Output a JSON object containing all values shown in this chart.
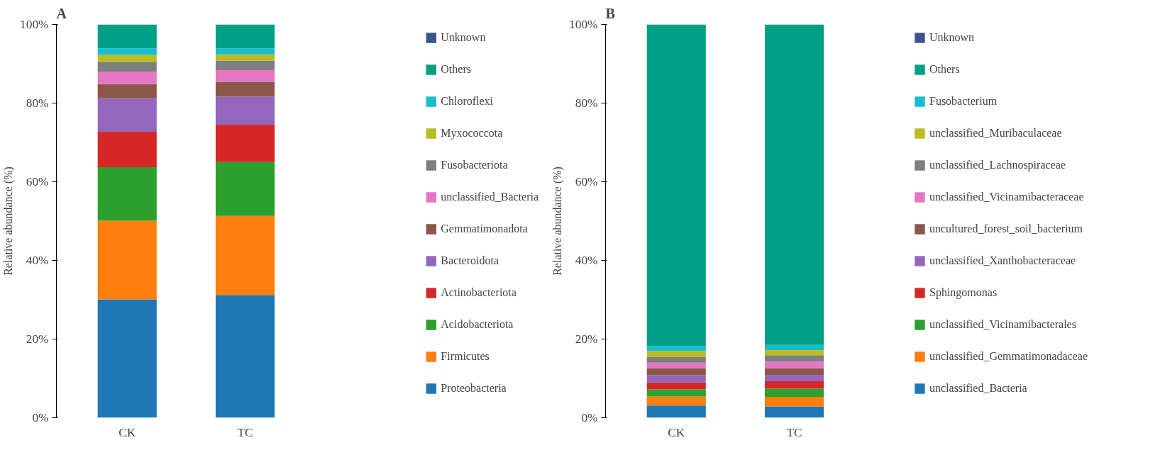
{
  "chart_data": [
    {
      "type": "bar",
      "title": "A",
      "ylabel": "Relative abundance (%)",
      "categories": [
        "CK",
        "TC"
      ],
      "stacked": true,
      "legend": "right",
      "grid": false,
      "ylim": [
        0,
        100
      ],
      "yticks": [
        {
          "value": 0,
          "label": "0%"
        },
        {
          "value": 20,
          "label": "20%"
        },
        {
          "value": 40,
          "label": "40%"
        },
        {
          "value": 60,
          "label": "60%"
        },
        {
          "value": 80,
          "label": "80%"
        },
        {
          "value": 100,
          "label": "100%"
        }
      ],
      "series": [
        {
          "name": "Proteobacteria",
          "color": "#1f77b4",
          "values": [
            30.1,
            31.2
          ]
        },
        {
          "name": "Firmicutes",
          "color": "#ff7f0e",
          "values": [
            20.0,
            20.1
          ]
        },
        {
          "name": "Acidobacteriota",
          "color": "#2ca02c",
          "values": [
            13.6,
            13.7
          ]
        },
        {
          "name": "Actinobacteriota",
          "color": "#d62728",
          "values": [
            9.0,
            9.5
          ]
        },
        {
          "name": "Bacteroidota",
          "color": "#9467bd",
          "values": [
            8.5,
            7.1
          ]
        },
        {
          "name": "Gemmatimonadota",
          "color": "#8c564b",
          "values": [
            3.6,
            3.8
          ]
        },
        {
          "name": "unclassified_Bacteria",
          "color": "#e377c2",
          "values": [
            3.2,
            3.0
          ]
        },
        {
          "name": "Fusobacteriota",
          "color": "#7f7f7f",
          "values": [
            2.5,
            2.4
          ]
        },
        {
          "name": "Myxococcota",
          "color": "#bcbd22",
          "values": [
            1.8,
            1.6
          ]
        },
        {
          "name": "Chloroflexi",
          "color": "#17becf",
          "values": [
            1.6,
            1.5
          ]
        },
        {
          "name": "Others",
          "color": "#00a087",
          "values": [
            6.1,
            6.1
          ]
        },
        {
          "name": "Unknown",
          "color": "#3c5488",
          "values": [
            0,
            0
          ]
        }
      ]
    },
    {
      "type": "bar",
      "title": "B",
      "ylabel": "Relative abundance (%)",
      "categories": [
        "CK",
        "TC"
      ],
      "stacked": true,
      "legend": "right",
      "grid": false,
      "ylim": [
        0,
        100
      ],
      "yticks": [
        {
          "value": 0,
          "label": "0%"
        },
        {
          "value": 20,
          "label": "20%"
        },
        {
          "value": 40,
          "label": "40%"
        },
        {
          "value": 60,
          "label": "60%"
        },
        {
          "value": 80,
          "label": "80%"
        },
        {
          "value": 100,
          "label": "100%"
        }
      ],
      "series": [
        {
          "name": "unclassified_Bacteria",
          "color": "#1f77b4",
          "values": [
            3.1,
            2.9
          ]
        },
        {
          "name": "unclassified_Gemmatimonadaceae",
          "color": "#ff7f0e",
          "values": [
            2.3,
            2.4
          ]
        },
        {
          "name": "unclassified_Vicinamibacterales",
          "color": "#2ca02c",
          "values": [
            1.8,
            2.1
          ]
        },
        {
          "name": "Sphingomonas",
          "color": "#d62728",
          "values": [
            1.8,
            1.9
          ]
        },
        {
          "name": "unclassified_Xanthobacteraceae",
          "color": "#9467bd",
          "values": [
            1.8,
            1.6
          ]
        },
        {
          "name": "uncultured_forest_soil_bacterium",
          "color": "#8c564b",
          "values": [
            1.8,
            1.7
          ]
        },
        {
          "name": "unclassified_Vicinamibacteraceae",
          "color": "#e377c2",
          "values": [
            1.4,
            1.7
          ]
        },
        {
          "name": "unclassified_Lachnospiraceae",
          "color": "#7f7f7f",
          "values": [
            1.4,
            1.6
          ]
        },
        {
          "name": "unclassified_Muribaculaceae",
          "color": "#bcbd22",
          "values": [
            1.6,
            1.3
          ]
        },
        {
          "name": "Fusobacterium",
          "color": "#17becf",
          "values": [
            1.3,
            1.3
          ]
        },
        {
          "name": "Others",
          "color": "#00a087",
          "values": [
            81.7,
            81.5
          ]
        },
        {
          "name": "Unknown",
          "color": "#3c5488",
          "values": [
            0,
            0
          ]
        }
      ]
    }
  ]
}
